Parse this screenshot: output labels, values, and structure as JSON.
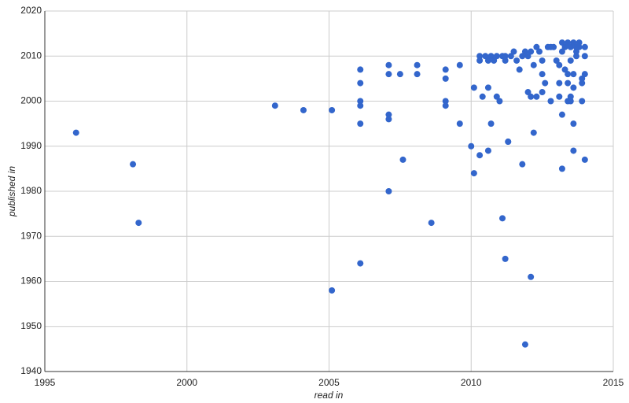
{
  "chart_data": {
    "type": "scatter",
    "x_label": "read in",
    "y_label": "published in",
    "xlim": [
      1995,
      2015
    ],
    "xticks": [
      1995,
      2000,
      2005,
      2010,
      2015
    ],
    "ylim": [
      1940,
      2020
    ],
    "yticks": [
      1940,
      1950,
      1960,
      1970,
      1980,
      1990,
      2000,
      2010,
      2020
    ],
    "grid": true,
    "color": "#3366cc",
    "x": [
      1996.1,
      1998.1,
      1998.3,
      2003.1,
      2004.1,
      2005.1,
      2005.1,
      2006.1,
      2006.1,
      2006.1,
      2006.1,
      2006.1,
      2006.1,
      2007.1,
      2007.1,
      2007.1,
      2007.1,
      2007.1,
      2007.5,
      2007.6,
      2008.1,
      2008.1,
      2008.6,
      2009.1,
      2009.1,
      2009.1,
      2009.1,
      2009.6,
      2009.6,
      2010.0,
      2010.1,
      2010.1,
      2010.3,
      2010.3,
      2010.3,
      2010.4,
      2010.5,
      2010.6,
      2010.6,
      2010.7,
      2010.6,
      2010.7,
      2010.8,
      2010.9,
      2010.9,
      2011.0,
      2011.1,
      2011.1,
      2011.2,
      2011.2,
      2011.2,
      2011.3,
      2011.3,
      2011.4,
      2011.5,
      2011.6,
      2011.7,
      2011.8,
      2011.8,
      2011.9,
      2011.9,
      2012.0,
      2012.0,
      2012.1,
      2012.1,
      2012.1,
      2012.2,
      2012.2,
      2012.3,
      2012.3,
      2012.4,
      2012.5,
      2012.5,
      2012.5,
      2012.6,
      2012.7,
      2012.8,
      2012.8,
      2012.9,
      2013.0,
      2013.1,
      2013.1,
      2013.1,
      2013.2,
      2013.2,
      2013.2,
      2013.2,
      2013.3,
      2013.3,
      2013.4,
      2013.4,
      2013.4,
      2013.4,
      2013.5,
      2013.5,
      2013.5,
      2013.5,
      2013.6,
      2013.6,
      2013.6,
      2013.6,
      2013.6,
      2013.7,
      2013.7,
      2013.7,
      2013.8,
      2013.8,
      2013.9,
      2013.9,
      2013.9,
      2014.0,
      2014.0,
      2014.0,
      2014.0
    ],
    "values": [
      1993,
      1986,
      1973,
      1999,
      1998,
      1998,
      1958,
      2007,
      2004,
      2000,
      1999,
      1995,
      1964,
      2008,
      2006,
      1997,
      1996,
      1980,
      2006,
      1987,
      2008,
      2006,
      1973,
      2007,
      2005,
      2000,
      1999,
      2008,
      1995,
      1990,
      2003,
      1984,
      2010,
      2009,
      1988,
      2001,
      2010,
      2003,
      1989,
      1995,
      2009,
      2010,
      2009,
      2010,
      2001,
      2000,
      2010,
      1974,
      2009,
      1965,
      2010,
      1991,
      1991,
      2010,
      2011,
      2009,
      2007,
      1986,
      2010,
      1946,
      2011,
      2002,
      2010,
      2001,
      1961,
      2011,
      1993,
      2008,
      2001,
      2012,
      2011,
      2009,
      2006,
      2002,
      2004,
      2012,
      2012,
      2000,
      2012,
      2009,
      2008,
      2004,
      2001,
      1985,
      2013,
      1997,
      2011,
      2007,
      2012,
      2006,
      2013,
      2004,
      2000,
      2000,
      2001,
      2012,
      2009,
      1989,
      2013,
      2006,
      2003,
      1995,
      2011,
      2012,
      2010,
      2013,
      2012,
      2004,
      2000,
      2005,
      2012,
      2006,
      2010,
      1987
    ]
  }
}
